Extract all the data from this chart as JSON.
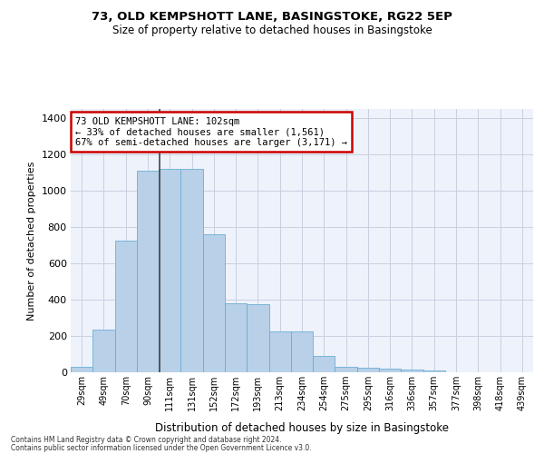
{
  "title1": "73, OLD KEMPSHOTT LANE, BASINGSTOKE, RG22 5EP",
  "title2": "Size of property relative to detached houses in Basingstoke",
  "xlabel": "Distribution of detached houses by size in Basingstoke",
  "ylabel": "Number of detached properties",
  "bar_values": [
    30,
    235,
    725,
    1110,
    1120,
    1120,
    760,
    380,
    375,
    225,
    225,
    90,
    30,
    25,
    20,
    15,
    10,
    0,
    0,
    0,
    0
  ],
  "bar_labels": [
    "29sqm",
    "49sqm",
    "70sqm",
    "90sqm",
    "111sqm",
    "131sqm",
    "152sqm",
    "172sqm",
    "193sqm",
    "213sqm",
    "234sqm",
    "254sqm",
    "275sqm",
    "295sqm",
    "316sqm",
    "336sqm",
    "357sqm",
    "377sqm",
    "398sqm",
    "418sqm",
    "439sqm"
  ],
  "bar_color": "#b8d0e8",
  "bar_edge_color": "#6aaed6",
  "annotation_title": "73 OLD KEMPSHOTT LANE: 102sqm",
  "annotation_line1": "← 33% of detached houses are smaller (1,561)",
  "annotation_line2": "67% of semi-detached houses are larger (3,171) →",
  "annotation_box_color": "#ffffff",
  "annotation_box_edge": "#cc0000",
  "vline_x_index": 3.52,
  "ylim": [
    0,
    1450
  ],
  "yticks": [
    0,
    200,
    400,
    600,
    800,
    1000,
    1200,
    1400
  ],
  "background_color": "#eef2fb",
  "grid_color": "#c8d0e0",
  "footer1": "Contains HM Land Registry data © Crown copyright and database right 2024.",
  "footer2": "Contains public sector information licensed under the Open Government Licence v3.0."
}
